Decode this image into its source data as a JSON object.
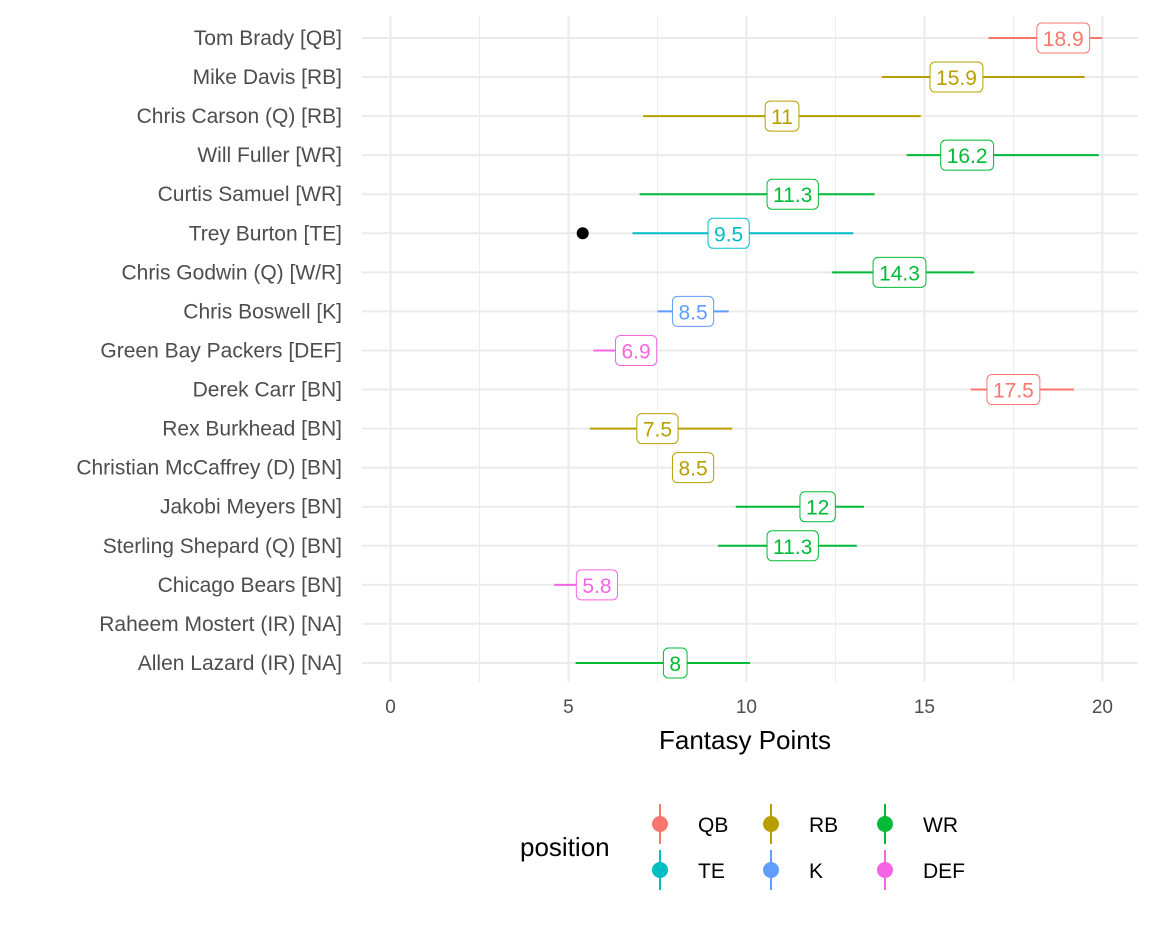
{
  "chart_data": {
    "type": "pointrange-label",
    "xlabel": "Fantasy Points",
    "xlim": [
      -0.8,
      21
    ],
    "x_ticks": [
      0,
      5,
      10,
      15,
      20
    ],
    "grid": true,
    "legend_title": "position",
    "legend_placement": "bottom",
    "legend": [
      {
        "name": "QB",
        "color": "#F8766D"
      },
      {
        "name": "RB",
        "color": "#B79F00"
      },
      {
        "name": "WR",
        "color": "#00BA38"
      },
      {
        "name": "TE",
        "color": "#00BFC4"
      },
      {
        "name": "K",
        "color": "#619CFF"
      },
      {
        "name": "DEF",
        "color": "#F564E3"
      }
    ],
    "players": [
      {
        "name": "Tom Brady [QB]",
        "position": "QB",
        "value": 18.9,
        "label": "18.9",
        "low": 16.8,
        "high": 20.0
      },
      {
        "name": "Mike Davis [RB]",
        "position": "RB",
        "value": 15.9,
        "label": "15.9",
        "low": 13.8,
        "high": 19.5
      },
      {
        "name": "Chris Carson (Q) [RB]",
        "position": "RB",
        "value": 11.0,
        "label": "11",
        "low": 7.1,
        "high": 14.9
      },
      {
        "name": "Will Fuller [WR]",
        "position": "WR",
        "value": 16.2,
        "label": "16.2",
        "low": 14.5,
        "high": 19.9
      },
      {
        "name": "Curtis Samuel [WR]",
        "position": "WR",
        "value": 11.3,
        "label": "11.3",
        "low": 7.0,
        "high": 13.6
      },
      {
        "name": "Trey Burton [TE]",
        "position": "TE",
        "value": 9.5,
        "label": "9.5",
        "low": 6.8,
        "high": 13.0,
        "actual": 5.4
      },
      {
        "name": "Chris Godwin (Q) [W/R]",
        "position": "WR",
        "value": 14.3,
        "label": "14.3",
        "low": 12.4,
        "high": 16.4
      },
      {
        "name": "Chris Boswell [K]",
        "position": "K",
        "value": 8.5,
        "label": "8.5",
        "low": 7.5,
        "high": 9.5
      },
      {
        "name": "Green Bay Packers [DEF]",
        "position": "DEF",
        "value": 6.9,
        "label": "6.9",
        "low": 5.7,
        "high": 7.4
      },
      {
        "name": "Derek Carr [BN]",
        "position": "QB",
        "value": 17.5,
        "label": "17.5",
        "low": 16.3,
        "high": 19.2
      },
      {
        "name": "Rex Burkhead [BN]",
        "position": "RB",
        "value": 7.5,
        "label": "7.5",
        "low": 5.6,
        "high": 9.6
      },
      {
        "name": "Christian McCaffrey (D) [BN]",
        "position": "RB",
        "value": 8.5,
        "label": "8.5"
      },
      {
        "name": "Jakobi Meyers [BN]",
        "position": "WR",
        "value": 12.0,
        "label": "12",
        "low": 9.7,
        "high": 13.3
      },
      {
        "name": "Sterling Shepard (Q) [BN]",
        "position": "WR",
        "value": 11.3,
        "label": "11.3",
        "low": 9.2,
        "high": 13.1
      },
      {
        "name": "Chicago Bears [BN]",
        "position": "DEF",
        "value": 5.8,
        "label": "5.8",
        "low": 4.6,
        "high": 5.9
      },
      {
        "name": "Raheem Mostert (IR) [NA]"
      },
      {
        "name": "Allen Lazard (IR) [NA]",
        "position": "WR",
        "value": 8.0,
        "label": "8",
        "low": 5.2,
        "high": 10.1
      }
    ]
  }
}
